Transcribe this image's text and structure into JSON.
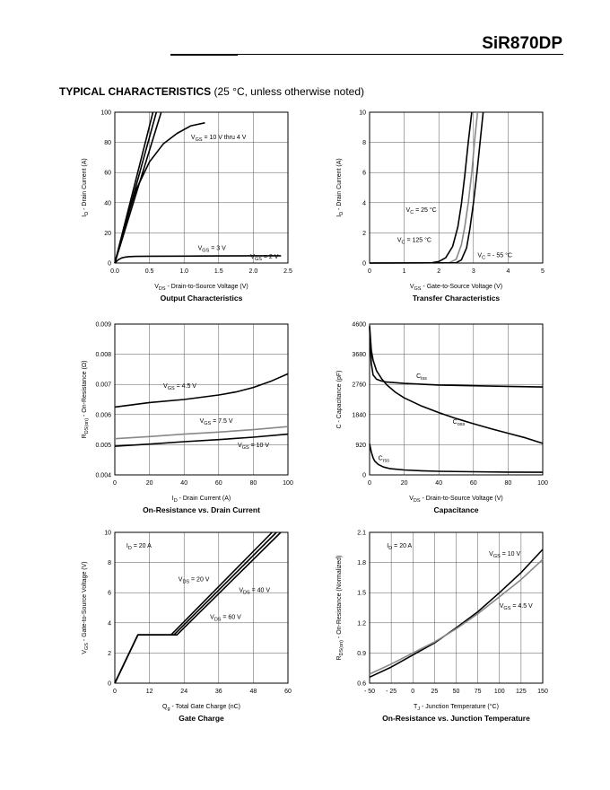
{
  "header": {
    "part_number": "SiR870DP"
  },
  "section": {
    "title": "TYPICAL CHARACTERISTICS",
    "subtitle": "(25 °C, unless otherwise noted)"
  },
  "chart_data": [
    {
      "id": "output",
      "type": "line",
      "title": "Output Characteristics",
      "xlabel": "V_DS - Drain-to-Source Voltage (V)",
      "ylabel": "I_D - Drain Current (A)",
      "xlim": [
        0,
        2.5
      ],
      "ylim": [
        0,
        100
      ],
      "xticks": [
        0,
        0.5,
        1.0,
        1.5,
        2.0,
        2.5
      ],
      "xtick_labels": [
        "0.0",
        "0.5",
        "1.0",
        "1.5",
        "2.0",
        "2.5"
      ],
      "yticks": [
        0,
        20,
        40,
        60,
        80,
        100
      ],
      "grid": true,
      "series": [
        {
          "name": "",
          "color": "#000000",
          "x": [
            0,
            0.55
          ],
          "y": [
            0,
            100
          ]
        },
        {
          "name": "",
          "color": "#000000",
          "x": [
            0,
            0.6
          ],
          "y": [
            0,
            100
          ]
        },
        {
          "name": "",
          "color": "#000000",
          "x": [
            0,
            0.67
          ],
          "y": [
            0,
            100
          ]
        },
        {
          "name": "",
          "color": "#000000",
          "x": [
            0,
            0.15,
            0.3,
            0.5,
            0.7,
            0.9,
            1.1,
            1.3
          ],
          "y": [
            0,
            26,
            48,
            67,
            79,
            86,
            91,
            93
          ]
        },
        {
          "name": "",
          "color": "#000000",
          "x": [
            0,
            0.05,
            0.1,
            0.15,
            0.2,
            0.3,
            0.5,
            1.0,
            1.5,
            2.0,
            2.4
          ],
          "y": [
            0,
            2.2,
            3.4,
            3.9,
            4.2,
            4.4,
            4.5,
            4.6,
            4.7,
            4.8,
            4.8
          ]
        }
      ],
      "annotations": [
        {
          "sub": "GS",
          "text": " = 10 V thru 4 V",
          "x": 1.1,
          "y": 82
        },
        {
          "sub": "GS",
          "text": " = 3 V",
          "x": 1.2,
          "y": 8.5
        },
        {
          "sub": "GS",
          "text": " = 2 V",
          "x": 1.96,
          "y": 3
        }
      ]
    },
    {
      "id": "transfer",
      "type": "line",
      "title": "Transfer Characteristics",
      "xlabel": "V_GS - Gate-to-Source Voltage (V)",
      "ylabel": "I_D - Drain Current (A)",
      "xlim": [
        0,
        5
      ],
      "ylim": [
        0,
        10
      ],
      "xticks": [
        0,
        1,
        2,
        3,
        4,
        5
      ],
      "yticks": [
        0,
        2,
        4,
        6,
        8,
        10
      ],
      "grid": true,
      "series": [
        {
          "name": "",
          "color": "#000000",
          "x": [
            0,
            1.8,
            2.0,
            2.2,
            2.4,
            2.55,
            2.65,
            2.75,
            2.85,
            2.95
          ],
          "y": [
            0,
            0.02,
            0.1,
            0.35,
            1.1,
            2.4,
            3.9,
            5.8,
            8.0,
            10
          ]
        },
        {
          "name": "",
          "color": "#888888",
          "x": [
            0,
            2.3,
            2.5,
            2.65,
            2.75,
            2.85,
            2.95,
            3.05,
            3.12
          ],
          "y": [
            0,
            0.02,
            0.25,
            1.2,
            2.4,
            4.0,
            6.0,
            8.5,
            10
          ]
        },
        {
          "name": "",
          "color": "#000000",
          "x": [
            0,
            2.5,
            2.65,
            2.8,
            2.9,
            3.0,
            3.1,
            3.2,
            3.28
          ],
          "y": [
            0,
            0.02,
            0.2,
            1.0,
            2.3,
            4.0,
            6.0,
            8.2,
            10
          ]
        }
      ],
      "annotations": [
        {
          "sub": "C",
          "text": " = 25 °C",
          "x": 1.05,
          "y": 3.4
        },
        {
          "sub": "C",
          "text": " = 125 °C",
          "x": 0.8,
          "y": 1.4
        },
        {
          "sub": "C",
          "text": " = - 55 °C",
          "x": 3.12,
          "y": 0.4
        }
      ]
    },
    {
      "id": "ron_id",
      "type": "line",
      "title": "On-Resistance vs. Drain Current",
      "xlabel": "I_D - Drain Current (A)",
      "ylabel": "R_DS(on) - On-Resistance (Ω)",
      "xlim": [
        0,
        100
      ],
      "ylim": [
        0.004,
        0.009
      ],
      "xticks": [
        0,
        20,
        40,
        60,
        80,
        100
      ],
      "yticks": [
        0.004,
        0.005,
        0.006,
        0.007,
        0.008,
        0.009
      ],
      "grid": true,
      "series": [
        {
          "name": "",
          "color": "#000000",
          "x": [
            0,
            20,
            40,
            60,
            70,
            80,
            90,
            100
          ],
          "y": [
            0.00625,
            0.0064,
            0.0065,
            0.00665,
            0.00675,
            0.0069,
            0.0071,
            0.00735
          ]
        },
        {
          "name": "",
          "color": "#888888",
          "x": [
            0,
            20,
            40,
            60,
            80,
            100
          ],
          "y": [
            0.0052,
            0.00527,
            0.00535,
            0.00542,
            0.0055,
            0.0056
          ]
        },
        {
          "name": "",
          "color": "#000000",
          "x": [
            0,
            20,
            40,
            60,
            80,
            100
          ],
          "y": [
            0.00495,
            0.00502,
            0.0051,
            0.00517,
            0.00525,
            0.00535
          ]
        }
      ],
      "annotations": [
        {
          "sub": "GS",
          "text": " = 4.5 V",
          "x": 28,
          "y": 0.00688
        },
        {
          "sub": "GS",
          "text": " = 7.5 V",
          "x": 49,
          "y": 0.00572
        },
        {
          "sub": "GS",
          "text": " = 10 V",
          "x": 71,
          "y": 0.00492
        }
      ]
    },
    {
      "id": "capacitance",
      "type": "line",
      "title": "Capacitance",
      "xlabel": "V_DS - Drain-to-Source Voltage (V)",
      "ylabel": "C - Capacitance (pF)",
      "xlim": [
        0,
        100
      ],
      "ylim": [
        0,
        4600
      ],
      "xticks": [
        0,
        20,
        40,
        60,
        80,
        100
      ],
      "yticks": [
        0,
        920,
        1840,
        2760,
        3680,
        4600
      ],
      "grid": true,
      "series": [
        {
          "name": "",
          "color": "#000000",
          "x": [
            0,
            1,
            2,
            4,
            7,
            10,
            20,
            40,
            60,
            80,
            100
          ],
          "y": [
            4500,
            3400,
            3050,
            2920,
            2860,
            2830,
            2790,
            2740,
            2720,
            2700,
            2680
          ]
        },
        {
          "name": "",
          "color": "#000000",
          "x": [
            0,
            1,
            2,
            4,
            7,
            10,
            15,
            20,
            30,
            40,
            50,
            60,
            70,
            80,
            90,
            100
          ],
          "y": [
            4550,
            3800,
            3500,
            3180,
            2930,
            2740,
            2520,
            2350,
            2100,
            1900,
            1720,
            1560,
            1410,
            1270,
            1130,
            960
          ]
        },
        {
          "name": "",
          "color": "#000000",
          "x": [
            0,
            1,
            2,
            3,
            5,
            8,
            12,
            20,
            30,
            40,
            60,
            80,
            100
          ],
          "y": [
            950,
            700,
            520,
            420,
            320,
            240,
            190,
            150,
            125,
            110,
            95,
            85,
            80
          ]
        }
      ],
      "annotations": [
        {
          "main": "C",
          "sub": "iss",
          "text": "",
          "x": 27,
          "y": 2960
        },
        {
          "main": "C",
          "sub": "oss",
          "text": "",
          "x": 48,
          "y": 1560
        },
        {
          "main": "C",
          "sub": "rss",
          "text": "",
          "x": 5,
          "y": 450
        }
      ]
    },
    {
      "id": "gate_charge",
      "type": "line",
      "title": "Gate Charge",
      "xlabel": "Q_g - Total Gate Charge (nC)",
      "ylabel": "V_GS - Gate-to-Source Voltage (V)",
      "xlim": [
        0,
        60
      ],
      "ylim": [
        0,
        10
      ],
      "xticks": [
        0,
        12,
        24,
        36,
        48,
        60
      ],
      "yticks": [
        0,
        2,
        4,
        6,
        8,
        10
      ],
      "grid": true,
      "series": [
        {
          "name": "",
          "color": "#000000",
          "x": [
            0,
            8,
            19.5,
            54.5
          ],
          "y": [
            0,
            3.2,
            3.2,
            10
          ]
        },
        {
          "name": "",
          "color": "#000000",
          "x": [
            0,
            8,
            20.5,
            56
          ],
          "y": [
            0,
            3.2,
            3.2,
            10
          ]
        },
        {
          "name": "",
          "color": "#000000",
          "x": [
            0,
            8,
            21.5,
            57.5
          ],
          "y": [
            0,
            3.2,
            3.2,
            10
          ]
        }
      ],
      "annotations": [
        {
          "main": "I",
          "sub": "D",
          "text": " = 20 A",
          "x": 4,
          "y": 9.0
        },
        {
          "main": "V",
          "sub": "DS",
          "text": " = 20 V",
          "x": 22,
          "y": 6.75
        },
        {
          "main": "V",
          "sub": "DS",
          "text": " = 40 V",
          "x": 43,
          "y": 6.05
        },
        {
          "main": "V",
          "sub": "DS",
          "text": " = 60 V",
          "x": 33,
          "y": 4.25
        }
      ]
    },
    {
      "id": "ron_tj",
      "type": "line",
      "title": "On-Resistance vs. Junction Temperature",
      "xlabel": "T_J - Junction Temperature (°C)",
      "ylabel": "R_DS(on) - On-Resistance (Normalized)",
      "xlim": [
        -50,
        150
      ],
      "ylim": [
        0.6,
        2.1
      ],
      "xticks": [
        -50,
        -25,
        0,
        25,
        50,
        75,
        100,
        125,
        150
      ],
      "xtick_labels": [
        "- 50",
        "- 25",
        "0",
        "25",
        "50",
        "75",
        "100",
        "125",
        "150"
      ],
      "yticks": [
        0.6,
        0.9,
        1.2,
        1.5,
        1.8,
        2.1
      ],
      "ytick_labels": [
        "0.6",
        "0.9",
        "1.2",
        "1.5",
        "1.8",
        "2.1"
      ],
      "grid": true,
      "series": [
        {
          "name": "",
          "color": "#000000",
          "x": [
            -50,
            -25,
            0,
            25,
            50,
            75,
            100,
            125,
            150
          ],
          "y": [
            0.66,
            0.76,
            0.88,
            1.0,
            1.15,
            1.31,
            1.5,
            1.7,
            1.93
          ]
        },
        {
          "name": "",
          "color": "#888888",
          "x": [
            -50,
            -25,
            0,
            25,
            50,
            75,
            100,
            125,
            150
          ],
          "y": [
            0.69,
            0.79,
            0.9,
            1.01,
            1.14,
            1.29,
            1.46,
            1.63,
            1.83
          ]
        }
      ],
      "annotations": [
        {
          "main": "I",
          "sub": "D",
          "text": " = 20 A",
          "x": -30,
          "y": 1.95
        },
        {
          "main": "V",
          "sub": "GS",
          "text": " = 10 V",
          "x": 88,
          "y": 1.87
        },
        {
          "main": "V",
          "sub": "GS",
          "text": " = 4.5 V",
          "x": 100,
          "y": 1.35
        }
      ]
    }
  ]
}
